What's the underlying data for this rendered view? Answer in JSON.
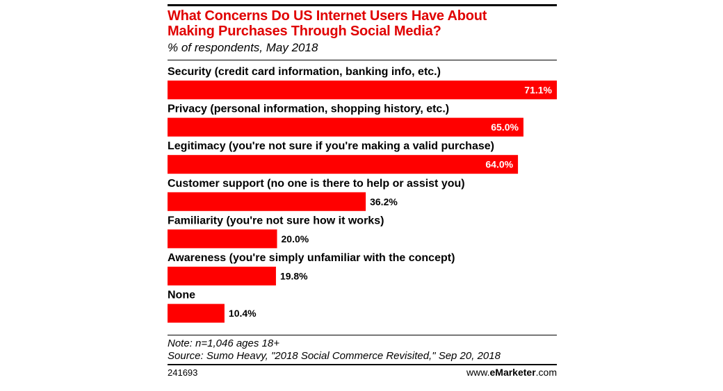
{
  "title_line1": "What Concerns Do US Internet Users Have About",
  "title_line2": "Making Purchases Through Social Media?",
  "subtitle": "% of respondents, May 2018",
  "note": "Note: n=1,046 ages 18+",
  "source": "Source: Sumo Heavy, \"2018 Social Commerce Revisited,\" Sep 20, 2018",
  "chart_id": "241693",
  "brand": {
    "prefix": "www.",
    "name": "eMarketer",
    "suffix": ".com"
  },
  "colors": {
    "bar": "#ff0000",
    "label_inside": "#ffffff",
    "label_outside": "#000000"
  },
  "chart_data": {
    "type": "bar",
    "orientation": "horizontal",
    "categories": [
      "Security (credit card information, banking info, etc.)",
      "Privacy (personal information, shopping history, etc.)",
      "Legitimacy (you're not sure if you're making a valid purchase)",
      "Customer support (no one is there to help or assist you)",
      "Familiarity (you're not sure how it works)",
      "Awareness (you're simply unfamiliar with the concept)",
      "None"
    ],
    "values": [
      71.1,
      65.0,
      64.0,
      36.2,
      20.0,
      19.8,
      10.4
    ],
    "value_labels": [
      "71.1%",
      "65.0%",
      "64.0%",
      "36.2%",
      "20.0%",
      "19.8%",
      "10.4%"
    ],
    "title": "What Concerns Do US Internet Users Have About Making Purchases Through Social Media?",
    "subtitle": "% of respondents, May 2018",
    "xlabel": "",
    "ylabel": "",
    "xlim": [
      0,
      71.1
    ],
    "grid": false,
    "legend": "none"
  }
}
